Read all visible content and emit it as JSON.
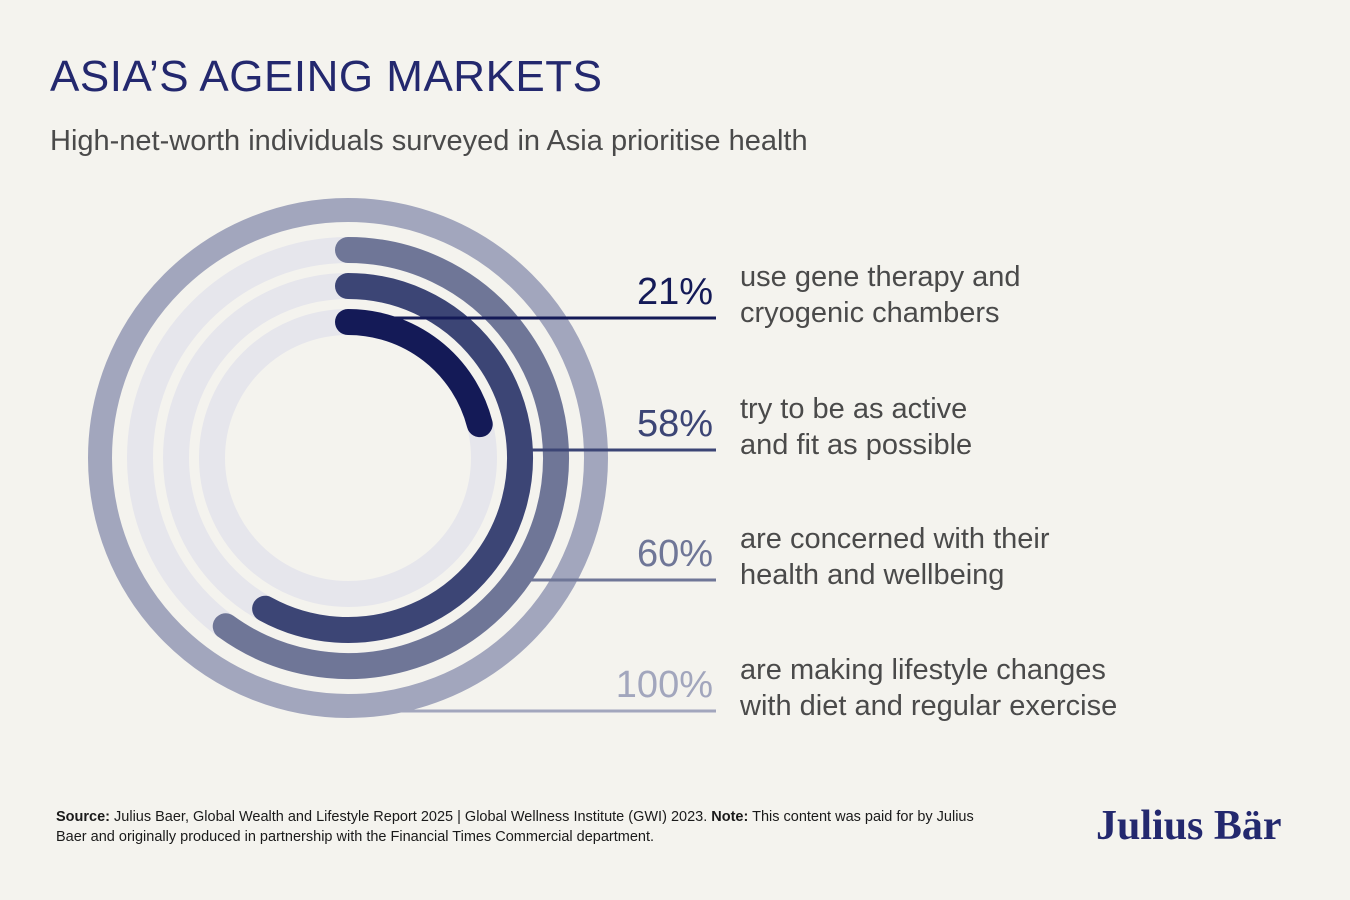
{
  "title": "ASIA’S AGEING MARKETS",
  "subtitle": "High-net-worth individuals surveyed in Asia prioritise health",
  "chart_data": {
    "type": "radial-bar",
    "unit": "%",
    "max": 100,
    "series": [
      {
        "value": 21,
        "label": "21%",
        "desc": [
          "use gene therapy and",
          "cryogenic chambers"
        ],
        "color": "#141a57"
      },
      {
        "value": 58,
        "label": "58%",
        "desc": [
          "try to be as active",
          "and fit as possible"
        ],
        "color": "#3c4575"
      },
      {
        "value": 60,
        "label": "60%",
        "desc": [
          "are concerned with their",
          "health and wellbeing"
        ],
        "color": "#6f7697"
      },
      {
        "value": 100,
        "label": "100%",
        "desc": [
          "are making lifestyle changes",
          "with diet and regular exercise"
        ],
        "color": "#a2a6bd"
      }
    ],
    "track_color": "#e6e6ec"
  },
  "footer": {
    "source_label": "Source:",
    "source_text": " Julius Baer, Global Wealth and Lifestyle Report 2025 | Global Wellness Institute (GWI) 2023. ",
    "note_label": "Note:",
    "note_text": " This content was paid for by Julius Baer and originally produced in partnership with the Financial Times Commercial department."
  },
  "logo": "Julius Bär"
}
